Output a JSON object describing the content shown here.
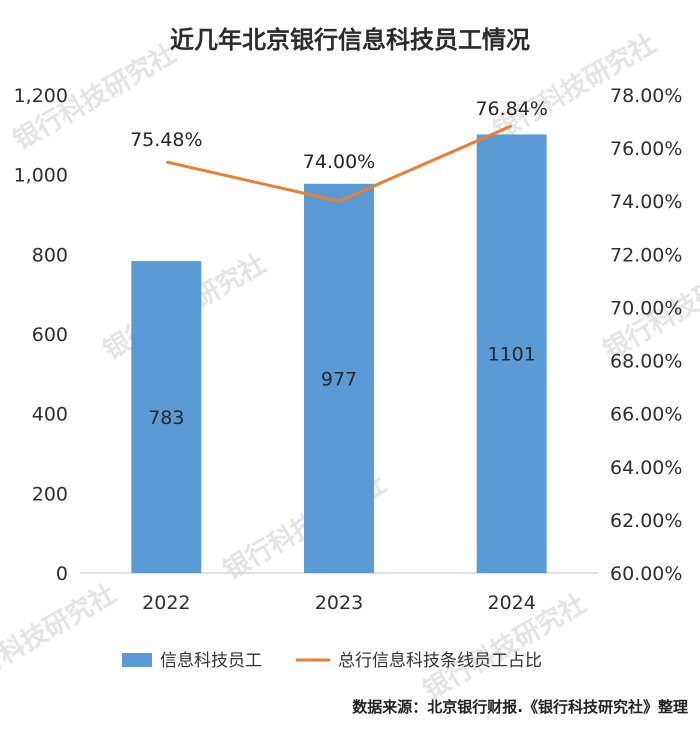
{
  "chart_data": {
    "type": "bar+line",
    "title": "近几年北京银行信息科技员工情况",
    "categories": [
      "2022",
      "2023",
      "2024"
    ],
    "series": [
      {
        "name": "信息科技员工",
        "type": "bar",
        "axis": "left",
        "values": [
          783,
          977,
          1101
        ],
        "labels": [
          "783",
          "977",
          "1101"
        ],
        "color": "#5b9bd5"
      },
      {
        "name": "总行信息科技条线员工占比",
        "type": "line",
        "axis": "right",
        "values": [
          75.48,
          74.0,
          76.84
        ],
        "labels": [
          "75.48%",
          "74.00%",
          "76.84%"
        ],
        "color": "#ed7d31"
      }
    ],
    "y_left": {
      "min": 0,
      "max": 1200,
      "step": 200,
      "tick_labels": [
        "0",
        "200",
        "400",
        "600",
        "800",
        "1,000",
        "1,200"
      ]
    },
    "y_right": {
      "min": 60,
      "max": 78,
      "step": 2,
      "tick_labels": [
        "60.00%",
        "62.00%",
        "64.00%",
        "66.00%",
        "68.00%",
        "70.00%",
        "72.00%",
        "74.00%",
        "76.00%",
        "78.00%"
      ]
    },
    "grid": false,
    "legend_position": "bottom"
  },
  "source_note": "数据来源：北京银行财报.《银行科技研究社》整理",
  "watermark_text": "银行科技研究社"
}
